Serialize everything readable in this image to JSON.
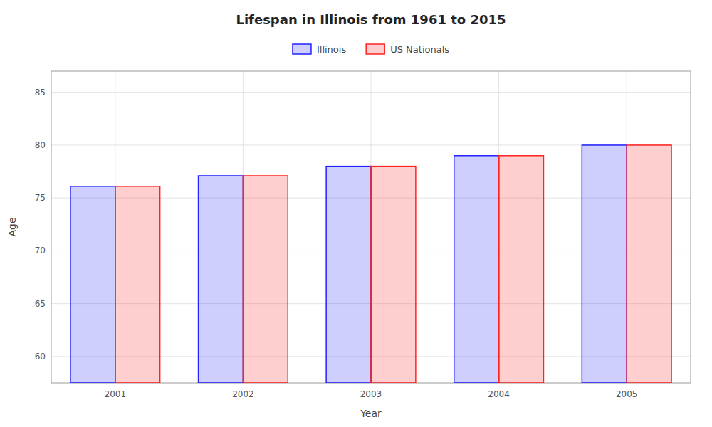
{
  "chart_data": {
    "type": "bar",
    "title": "Lifespan in Illinois from 1961 to 2015",
    "xlabel": "Year",
    "ylabel": "Age",
    "categories": [
      "2001",
      "2002",
      "2003",
      "2004",
      "2005"
    ],
    "series": [
      {
        "name": "Illinois",
        "color": "#2222ff",
        "values": [
          76.1,
          77.1,
          78.0,
          79.0,
          80.0
        ]
      },
      {
        "name": "US Nationals",
        "color": "#ff2222",
        "values": [
          76.1,
          77.1,
          78.0,
          79.0,
          80.0
        ]
      }
    ],
    "ylim": [
      57.5,
      87
    ],
    "yticks": [
      60,
      65,
      70,
      75,
      80,
      85
    ],
    "grid": true,
    "legend": "top"
  }
}
